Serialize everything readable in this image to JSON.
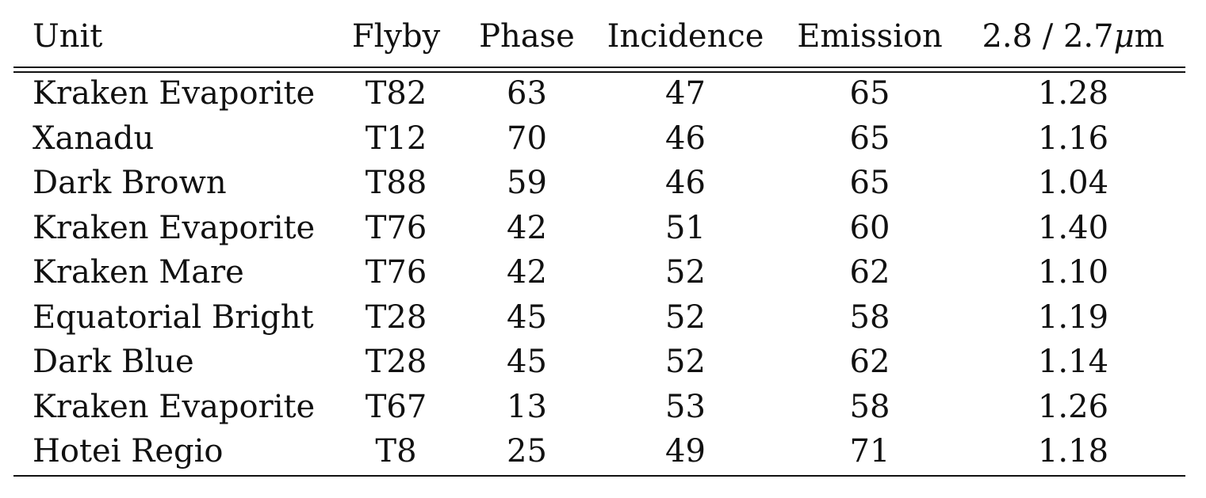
{
  "table": {
    "headers": {
      "unit": "Unit",
      "flyby": "Flyby",
      "phase": "Phase",
      "incidence": "Incidence",
      "emission": "Emission",
      "ratio_prefix": "2.8 / 2.7",
      "ratio_mu": "μ",
      "ratio_suffix": "m"
    },
    "rows": [
      {
        "unit": "Kraken Evaporite",
        "flyby": "T82",
        "phase": "63",
        "incidence": "47",
        "emission": "65",
        "ratio": "1.28"
      },
      {
        "unit": "Xanadu",
        "flyby": "T12",
        "phase": "70",
        "incidence": "46",
        "emission": "65",
        "ratio": "1.16"
      },
      {
        "unit": "Dark Brown",
        "flyby": "T88",
        "phase": "59",
        "incidence": "46",
        "emission": "65",
        "ratio": "1.04"
      },
      {
        "unit": "Kraken Evaporite",
        "flyby": "T76",
        "phase": "42",
        "incidence": "51",
        "emission": "60",
        "ratio": "1.40"
      },
      {
        "unit": "Kraken Mare",
        "flyby": "T76",
        "phase": "42",
        "incidence": "52",
        "emission": "62",
        "ratio": "1.10"
      },
      {
        "unit": "Equatorial Bright",
        "flyby": "T28",
        "phase": "45",
        "incidence": "52",
        "emission": "58",
        "ratio": "1.19"
      },
      {
        "unit": "Dark Blue",
        "flyby": "T28",
        "phase": "45",
        "incidence": "52",
        "emission": "62",
        "ratio": "1.14"
      },
      {
        "unit": "Kraken Evaporite",
        "flyby": "T67",
        "phase": "13",
        "incidence": "53",
        "emission": "58",
        "ratio": "1.26"
      },
      {
        "unit": "Hotei Regio",
        "flyby": "T8",
        "phase": "25",
        "incidence": "49",
        "emission": "71",
        "ratio": "1.18"
      }
    ]
  }
}
